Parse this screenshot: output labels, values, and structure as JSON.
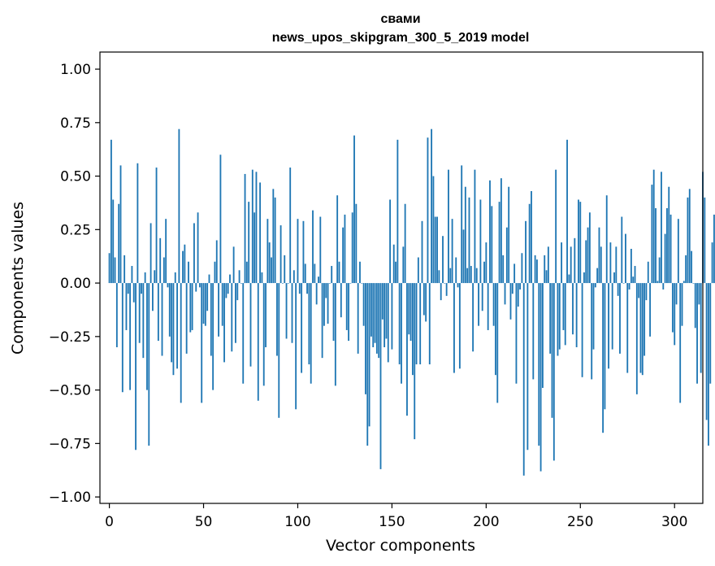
{
  "chart_data": {
    "type": "bar",
    "title": "свами",
    "subtitle": "news_upos_skipgram_300_5_2019 model",
    "xlabel": "Vector components",
    "ylabel": "Components values",
    "xlim": [
      -5,
      315
    ],
    "ylim": [
      -1.03,
      1.08
    ],
    "xticks": [
      0,
      50,
      100,
      150,
      200,
      250,
      300
    ],
    "yticks": [
      -1.0,
      -0.75,
      -0.5,
      -0.25,
      0.0,
      0.25,
      0.5,
      0.75,
      1.0
    ],
    "ytick_labels": [
      "−1.00",
      "−0.75",
      "−0.50",
      "−0.25",
      "0.00",
      "0.25",
      "0.50",
      "0.75",
      "1.00"
    ],
    "xtick_labels": [
      "0",
      "50",
      "100",
      "150",
      "200",
      "250",
      "300"
    ],
    "color": "#1f77b4",
    "values": [
      0.14,
      0.67,
      0.39,
      0.12,
      -0.3,
      0.37,
      0.55,
      -0.51,
      0.13,
      -0.22,
      -0.05,
      -0.5,
      0.08,
      -0.09,
      -0.78,
      0.56,
      -0.28,
      -0.05,
      -0.35,
      0.05,
      -0.5,
      -0.76,
      0.28,
      -0.13,
      0.06,
      0.54,
      -0.27,
      0.21,
      -0.34,
      0.12,
      0.3,
      -0.02,
      -0.25,
      -0.37,
      -0.43,
      0.05,
      -0.4,
      0.72,
      -0.56,
      0.15,
      0.18,
      -0.33,
      0.1,
      -0.23,
      -0.22,
      0.28,
      -0.04,
      0.33,
      -0.02,
      -0.56,
      -0.19,
      -0.2,
      -0.13,
      0.04,
      -0.34,
      -0.5,
      0.1,
      0.2,
      -0.25,
      0.6,
      -0.2,
      -0.37,
      -0.07,
      -0.05,
      0.04,
      -0.32,
      0.17,
      -0.28,
      -0.08,
      0.06,
      0.0,
      -0.47,
      0.51,
      0.1,
      0.38,
      -0.39,
      0.53,
      0.33,
      0.52,
      -0.55,
      0.47,
      0.05,
      -0.48,
      -0.3,
      0.3,
      0.19,
      0.12,
      0.44,
      0.4,
      -0.34,
      -0.63,
      0.27,
      0.0,
      0.13,
      -0.26,
      0.0,
      0.54,
      -0.28,
      0.06,
      -0.59,
      0.3,
      -0.05,
      -0.42,
      0.29,
      0.09,
      -0.05,
      -0.38,
      -0.47,
      0.34,
      0.09,
      -0.1,
      0.03,
      0.31,
      -0.35,
      -0.2,
      -0.07,
      -0.19,
      0.0,
      0.08,
      -0.27,
      -0.48,
      0.41,
      0.1,
      -0.16,
      0.26,
      0.32,
      -0.22,
      -0.27,
      0.0,
      0.33,
      0.69,
      0.37,
      -0.33,
      0.1,
      0.0,
      -0.2,
      -0.52,
      -0.76,
      -0.67,
      -0.25,
      -0.3,
      -0.28,
      -0.33,
      -0.35,
      -0.87,
      -0.17,
      -0.3,
      -0.26,
      -0.37,
      0.39,
      -0.31,
      0.18,
      0.1,
      0.67,
      -0.38,
      -0.47,
      0.17,
      0.37,
      -0.62,
      -0.24,
      -0.27,
      -0.43,
      -0.73,
      -0.38,
      0.12,
      -0.38,
      0.29,
      -0.15,
      -0.18,
      0.68,
      -0.38,
      0.72,
      0.5,
      0.31,
      0.31,
      0.06,
      -0.08,
      0.22,
      0.0,
      -0.06,
      0.53,
      0.07,
      0.3,
      -0.42,
      0.12,
      -0.02,
      -0.4,
      0.55,
      0.25,
      0.45,
      0.07,
      0.4,
      0.08,
      -0.32,
      0.53,
      0.07,
      -0.2,
      0.39,
      -0.13,
      0.1,
      0.19,
      -0.22,
      0.48,
      0.36,
      -0.2,
      -0.43,
      -0.56,
      0.38,
      0.49,
      0.13,
      -0.1,
      0.26,
      0.45,
      -0.17,
      -0.05,
      0.09,
      -0.47,
      -0.11,
      -0.03,
      0.14,
      -0.9,
      0.29,
      -0.78,
      0.37,
      0.43,
      -0.45,
      0.13,
      0.11,
      -0.76,
      -0.88,
      -0.49,
      0.13,
      0.06,
      0.17,
      -0.33,
      -0.63,
      -0.83,
      0.53,
      -0.34,
      -0.31,
      0.19,
      -0.22,
      -0.29,
      0.67,
      0.04,
      0.17,
      -0.24,
      0.21,
      -0.3,
      0.39,
      0.38,
      -0.44,
      0.05,
      0.2,
      0.26,
      0.33,
      -0.45,
      -0.31,
      -0.02,
      0.07,
      0.26,
      0.17,
      -0.7,
      -0.59,
      0.41,
      -0.4,
      0.19,
      -0.31,
      0.05,
      0.17,
      -0.06,
      -0.33,
      0.31,
      0.0,
      0.23,
      -0.42,
      -0.03,
      0.16,
      0.03,
      0.08,
      -0.52,
      -0.07,
      -0.42,
      -0.43,
      -0.34,
      -0.08,
      0.1,
      -0.25,
      0.46,
      0.53,
      0.35,
      0.01,
      0.12,
      0.52,
      -0.03,
      0.23,
      0.35,
      0.45,
      0.32,
      -0.23,
      -0.29,
      -0.1,
      0.3,
      -0.56,
      -0.2,
      0.01,
      0.13,
      0.4,
      0.44,
      0.15,
      0.0,
      -0.21,
      -0.47,
      -0.1,
      -0.42,
      0.52,
      0.4,
      -0.64,
      -0.76,
      -0.47,
      0.19,
      0.32,
      -0.35
    ]
  }
}
